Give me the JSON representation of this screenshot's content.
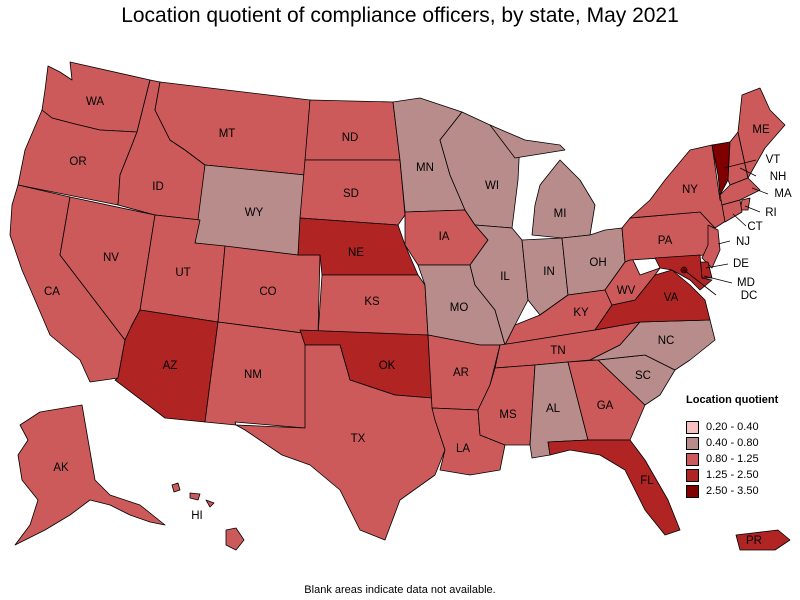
{
  "title": "Location quotient of compliance officers, by state, May 2021",
  "footnote": "Blank areas indicate data not available.",
  "colors": {
    "c1": "#f7c0c3",
    "c2": "#b98c8c",
    "c3": "#cd5a5a",
    "c4": "#b02424",
    "c5": "#800000"
  },
  "legend": {
    "title": "Location quotient",
    "items": [
      {
        "label": "0.20 - 0.40",
        "color": "#f7c0c3"
      },
      {
        "label": "0.40 - 0.80",
        "color": "#b98c8c"
      },
      {
        "label": "0.80 - 1.25",
        "color": "#cd5a5a"
      },
      {
        "label": "1.25 - 2.50",
        "color": "#b02424"
      },
      {
        "label": "2.50 - 3.50",
        "color": "#800000"
      }
    ]
  },
  "states": [
    {
      "abbr": "WA",
      "class": "0.80 - 1.25"
    },
    {
      "abbr": "OR",
      "class": "0.80 - 1.25"
    },
    {
      "abbr": "CA",
      "class": "0.80 - 1.25"
    },
    {
      "abbr": "NV",
      "class": "0.80 - 1.25"
    },
    {
      "abbr": "ID",
      "class": "0.80 - 1.25"
    },
    {
      "abbr": "MT",
      "class": "0.80 - 1.25"
    },
    {
      "abbr": "WY",
      "class": "0.40 - 0.80"
    },
    {
      "abbr": "UT",
      "class": "0.80 - 1.25"
    },
    {
      "abbr": "AZ",
      "class": "1.25 - 2.50"
    },
    {
      "abbr": "CO",
      "class": "0.80 - 1.25"
    },
    {
      "abbr": "NM",
      "class": "0.80 - 1.25"
    },
    {
      "abbr": "ND",
      "class": "0.80 - 1.25"
    },
    {
      "abbr": "SD",
      "class": "0.80 - 1.25"
    },
    {
      "abbr": "NE",
      "class": "1.25 - 2.50"
    },
    {
      "abbr": "KS",
      "class": "0.80 - 1.25"
    },
    {
      "abbr": "OK",
      "class": "1.25 - 2.50"
    },
    {
      "abbr": "TX",
      "class": "0.80 - 1.25"
    },
    {
      "abbr": "MN",
      "class": "0.40 - 0.80"
    },
    {
      "abbr": "IA",
      "class": "0.80 - 1.25"
    },
    {
      "abbr": "MO",
      "class": "0.40 - 0.80"
    },
    {
      "abbr": "AR",
      "class": "0.80 - 1.25"
    },
    {
      "abbr": "LA",
      "class": "0.80 - 1.25"
    },
    {
      "abbr": "WI",
      "class": "0.40 - 0.80"
    },
    {
      "abbr": "IL",
      "class": "0.40 - 0.80"
    },
    {
      "abbr": "MI",
      "class": "0.40 - 0.80"
    },
    {
      "abbr": "IN",
      "class": "0.40 - 0.80"
    },
    {
      "abbr": "OH",
      "class": "0.40 - 0.80"
    },
    {
      "abbr": "KY",
      "class": "0.80 - 1.25"
    },
    {
      "abbr": "TN",
      "class": "0.80 - 1.25"
    },
    {
      "abbr": "MS",
      "class": "0.80 - 1.25"
    },
    {
      "abbr": "AL",
      "class": "0.40 - 0.80"
    },
    {
      "abbr": "GA",
      "class": "0.80 - 1.25"
    },
    {
      "abbr": "FL",
      "class": "1.25 - 2.50"
    },
    {
      "abbr": "SC",
      "class": "0.40 - 0.80"
    },
    {
      "abbr": "NC",
      "class": "0.40 - 0.80"
    },
    {
      "abbr": "VA",
      "class": "1.25 - 2.50"
    },
    {
      "abbr": "WV",
      "class": "0.80 - 1.25"
    },
    {
      "abbr": "PA",
      "class": "0.80 - 1.25"
    },
    {
      "abbr": "NY",
      "class": "0.80 - 1.25"
    },
    {
      "abbr": "VT",
      "class": "2.50 - 3.50"
    },
    {
      "abbr": "NH",
      "class": "0.80 - 1.25"
    },
    {
      "abbr": "ME",
      "class": "0.80 - 1.25"
    },
    {
      "abbr": "MA",
      "class": "0.80 - 1.25"
    },
    {
      "abbr": "RI",
      "class": "0.80 - 1.25"
    },
    {
      "abbr": "CT",
      "class": "0.80 - 1.25"
    },
    {
      "abbr": "NJ",
      "class": "0.80 - 1.25"
    },
    {
      "abbr": "DE",
      "class": "1.25 - 2.50"
    },
    {
      "abbr": "MD",
      "class": "1.25 - 2.50"
    },
    {
      "abbr": "DC",
      "class": "2.50 - 3.50"
    },
    {
      "abbr": "AK",
      "class": "0.80 - 1.25"
    },
    {
      "abbr": "HI",
      "class": "0.80 - 1.25"
    },
    {
      "abbr": "PR",
      "class": "1.25 - 2.50"
    }
  ]
}
